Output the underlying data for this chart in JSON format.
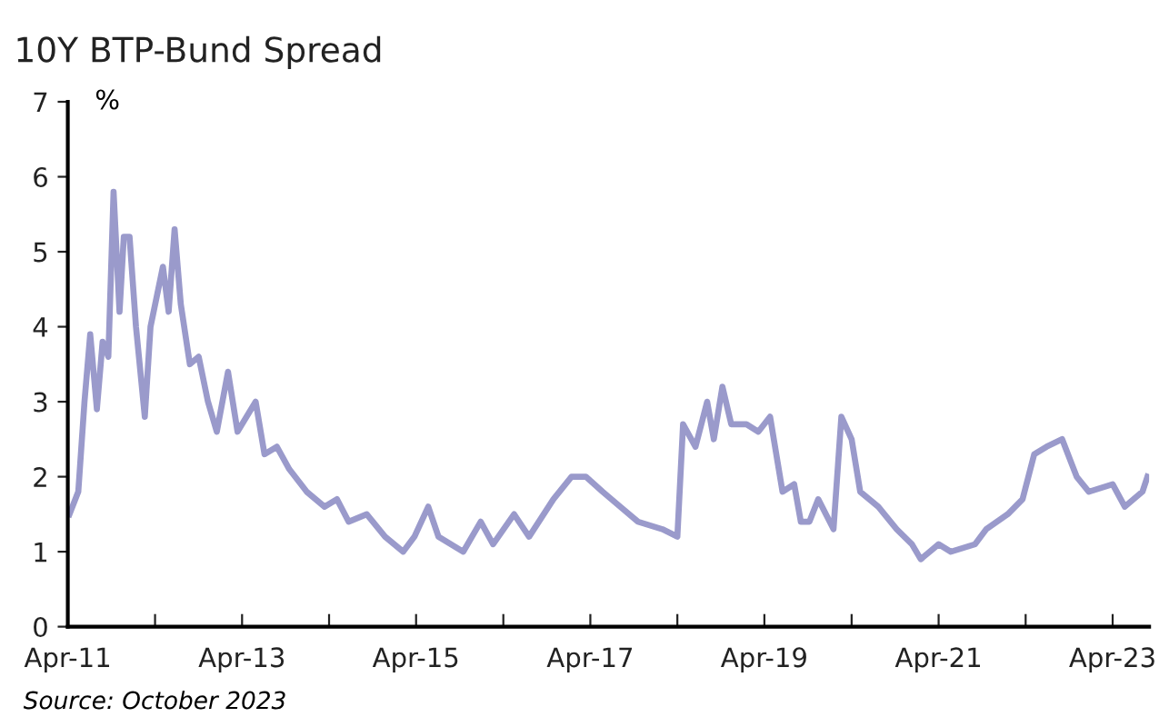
{
  "chart_data": {
    "type": "line",
    "title": "10Y BTP-Bund Spread",
    "ylabel": "%",
    "annotations": [
      "Source: October 2023"
    ],
    "x": [
      "2011-04-08",
      "2011-05-15",
      "2011-06-10",
      "2011-07-04",
      "2011-08-01",
      "2011-08-25",
      "2011-09-18",
      "2011-10-10",
      "2011-11-04",
      "2011-11-22",
      "2011-12-16",
      "2012-01-12",
      "2012-02-18",
      "2012-03-13",
      "2012-05-04",
      "2012-05-28",
      "2012-06-22",
      "2012-07-18",
      "2012-08-25",
      "2012-10-01",
      "2012-11-09",
      "2012-12-16",
      "2013-02-01",
      "2013-03-13",
      "2013-05-28",
      "2013-07-04",
      "2013-08-25",
      "2013-10-16",
      "2013-12-28",
      "2014-03-13",
      "2014-05-04",
      "2014-06-22",
      "2014-09-06",
      "2014-11-22",
      "2015-02-06",
      "2015-03-25",
      "2015-05-22",
      "2015-07-04",
      "2015-10-16",
      "2015-12-28",
      "2016-02-18",
      "2016-05-16",
      "2016-07-18",
      "2016-10-28",
      "2017-01-12",
      "2017-03-13",
      "2017-05-22",
      "2017-08-04",
      "2017-10-18",
      "2018-01-28",
      "2018-04-01",
      "2018-04-25",
      "2018-06-16",
      "2018-08-04",
      "2018-09-01",
      "2018-10-07",
      "2018-11-13",
      "2019-01-16",
      "2019-03-07",
      "2019-04-25",
      "2019-06-16",
      "2019-08-04",
      "2019-09-01",
      "2019-10-07",
      "2019-11-13",
      "2020-01-16",
      "2020-02-18",
      "2020-04-01",
      "2020-05-07",
      "2020-07-22",
      "2020-10-07",
      "2020-12-10",
      "2021-01-16",
      "2021-04-01",
      "2021-05-22",
      "2021-09-01",
      "2021-10-18",
      "2022-01-16",
      "2022-03-19",
      "2022-05-07",
      "2022-06-28",
      "2022-09-01",
      "2022-11-01",
      "2022-12-22",
      "2023-04-01",
      "2023-05-22",
      "2023-08-04",
      "2023-08-25"
    ],
    "series": [
      {
        "color": "#9a9acb",
        "values": [
          1.5,
          1.8,
          3.0,
          3.9,
          2.9,
          3.8,
          3.6,
          5.8,
          4.2,
          5.2,
          5.2,
          4.0,
          2.8,
          4.0,
          4.8,
          4.2,
          5.3,
          4.3,
          3.5,
          3.6,
          3.0,
          2.6,
          3.4,
          2.6,
          3.0,
          2.3,
          2.4,
          2.1,
          1.8,
          1.6,
          1.7,
          1.4,
          1.5,
          1.2,
          1.0,
          1.2,
          1.6,
          1.2,
          1.0,
          1.4,
          1.1,
          1.5,
          1.2,
          1.7,
          2.0,
          2.0,
          1.8,
          1.6,
          1.4,
          1.3,
          1.2,
          2.7,
          2.4,
          3.0,
          2.5,
          3.2,
          2.7,
          2.7,
          2.6,
          2.8,
          1.8,
          1.9,
          1.4,
          1.4,
          1.7,
          1.3,
          2.8,
          2.5,
          1.8,
          1.6,
          1.3,
          1.1,
          0.9,
          1.1,
          1.0,
          1.1,
          1.3,
          1.5,
          1.7,
          2.3,
          2.4,
          2.5,
          2.0,
          1.8,
          1.9,
          1.6,
          1.8,
          2.0
        ]
      }
    ],
    "xlim": [
      "2011-04-01",
      "2023-09-01"
    ],
    "xticks": [
      {
        "value": "2011-04-01",
        "label": "Apr-11"
      },
      {
        "value": "2012-04-01",
        "label": null
      },
      {
        "value": "2013-04-01",
        "label": "Apr-13"
      },
      {
        "value": "2014-04-01",
        "label": null
      },
      {
        "value": "2015-04-01",
        "label": "Apr-15"
      },
      {
        "value": "2016-04-01",
        "label": null
      },
      {
        "value": "2017-04-01",
        "label": "Apr-17"
      },
      {
        "value": "2018-04-01",
        "label": null
      },
      {
        "value": "2019-04-01",
        "label": "Apr-19"
      },
      {
        "value": "2020-04-01",
        "label": null
      },
      {
        "value": "2021-04-01",
        "label": "Apr-21"
      },
      {
        "value": "2022-04-01",
        "label": null
      },
      {
        "value": "2023-04-01",
        "label": "Apr-23"
      }
    ],
    "ylim": [
      0,
      7
    ],
    "yticks": [
      0,
      1,
      2,
      3,
      4,
      5,
      6,
      7
    ],
    "grid": false
  }
}
